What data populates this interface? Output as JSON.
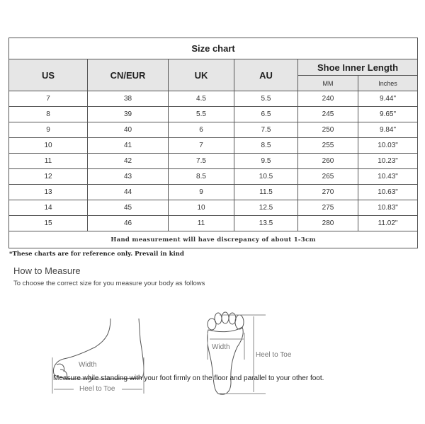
{
  "table": {
    "title": "Size chart",
    "headers": [
      "US",
      "CN/EUR",
      "UK",
      "AU"
    ],
    "group_header": "Shoe Inner Length",
    "sub_headers": [
      "MM",
      "Inches"
    ],
    "rows": [
      [
        "7",
        "38",
        "4.5",
        "5.5",
        "240",
        "9.44\""
      ],
      [
        "8",
        "39",
        "5.5",
        "6.5",
        "245",
        "9.65\""
      ],
      [
        "9",
        "40",
        "6",
        "7.5",
        "250",
        "9.84\""
      ],
      [
        "10",
        "41",
        "7",
        "8.5",
        "255",
        "10.03\""
      ],
      [
        "11",
        "42",
        "7.5",
        "9.5",
        "260",
        "10.23\""
      ],
      [
        "12",
        "43",
        "8.5",
        "10.5",
        "265",
        "10.43\""
      ],
      [
        "13",
        "44",
        "9",
        "11.5",
        "270",
        "10.63\""
      ],
      [
        "14",
        "45",
        "10",
        "12.5",
        "275",
        "10.83\""
      ],
      [
        "15",
        "46",
        "11",
        "13.5",
        "280",
        "11.02\""
      ]
    ],
    "footer": "Hand measurement will have discrepancy of about 1-3cm"
  },
  "note": "*These charts are for reference only. Prevail in kind",
  "how": {
    "title": "How to Measure",
    "subtitle": "To choose the correct size for you measure your body as follows",
    "side_width": "Width",
    "side_length": "Heel to Toe",
    "sole_width": "Width",
    "sole_length": "Heel to Toe",
    "caption": "Measure while standing with your foot firmly on the floor and parallel to your other foot."
  }
}
